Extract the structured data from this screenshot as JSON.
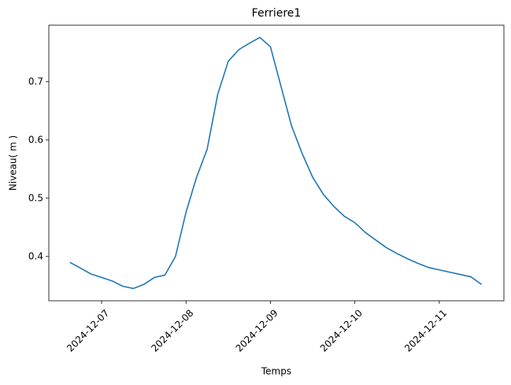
{
  "chart_data": {
    "type": "line",
    "title": "Ferriere1",
    "xlabel": "Temps",
    "ylabel": "Niveau( m )",
    "x": [
      "2024-12-06T15:00",
      "2024-12-06T18:00",
      "2024-12-06T21:00",
      "2024-12-07T00:00",
      "2024-12-07T03:00",
      "2024-12-07T06:00",
      "2024-12-07T09:00",
      "2024-12-07T12:00",
      "2024-12-07T15:00",
      "2024-12-07T18:00",
      "2024-12-07T21:00",
      "2024-12-08T00:00",
      "2024-12-08T03:00",
      "2024-12-08T06:00",
      "2024-12-08T09:00",
      "2024-12-08T12:00",
      "2024-12-08T15:00",
      "2024-12-08T18:00",
      "2024-12-08T21:00",
      "2024-12-09T00:00",
      "2024-12-09T03:00",
      "2024-12-09T06:00",
      "2024-12-09T09:00",
      "2024-12-09T12:00",
      "2024-12-09T15:00",
      "2024-12-09T18:00",
      "2024-12-09T21:00",
      "2024-12-10T00:00",
      "2024-12-10T03:00",
      "2024-12-10T06:00",
      "2024-12-10T09:00",
      "2024-12-10T12:00",
      "2024-12-10T15:00",
      "2024-12-10T18:00",
      "2024-12-10T21:00",
      "2024-12-11T00:00",
      "2024-12-11T03:00",
      "2024-12-11T06:00",
      "2024-12-11T09:00",
      "2024-12-11T12:00"
    ],
    "series": [
      {
        "name": "Ferriere1",
        "color": "#1f77b4",
        "values": [
          0.39,
          0.38,
          0.37,
          0.364,
          0.358,
          0.349,
          0.345,
          0.352,
          0.364,
          0.368,
          0.4,
          0.476,
          0.536,
          0.584,
          0.678,
          0.735,
          0.755,
          0.766,
          0.776,
          0.76,
          0.692,
          0.624,
          0.577,
          0.536,
          0.507,
          0.486,
          0.469,
          0.458,
          0.441,
          0.428,
          0.415,
          0.405,
          0.396,
          0.388,
          0.381,
          0.377,
          0.373,
          0.369,
          0.365,
          0.352
        ]
      }
    ],
    "xlim": [
      "2024-12-06T09:00",
      "2024-12-11T18:22"
    ],
    "xticks": [
      "2024-12-07",
      "2024-12-08",
      "2024-12-09",
      "2024-12-10",
      "2024-12-11"
    ],
    "ylim": [
      0.324,
      0.797
    ],
    "yticks": [
      0.4,
      0.5,
      0.6,
      0.7
    ]
  }
}
